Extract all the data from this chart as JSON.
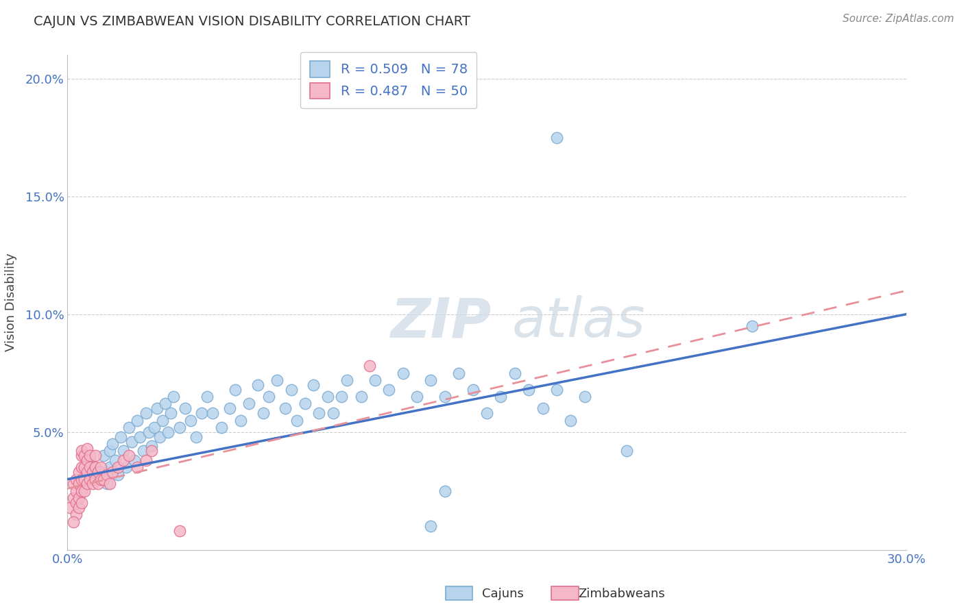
{
  "title": "CAJUN VS ZIMBABWEAN VISION DISABILITY CORRELATION CHART",
  "source": "Source: ZipAtlas.com",
  "ylabel": "Vision Disability",
  "xlim": [
    0.0,
    0.3
  ],
  "ylim": [
    0.0,
    0.21
  ],
  "xticks": [
    0.0,
    0.05,
    0.1,
    0.15,
    0.2,
    0.25,
    0.3
  ],
  "xticklabels": [
    "0.0%",
    "",
    "",
    "",
    "",
    "",
    "30.0%"
  ],
  "yticks": [
    0.0,
    0.05,
    0.1,
    0.15,
    0.2
  ],
  "yticklabels": [
    "",
    "5.0%",
    "10.0%",
    "15.0%",
    "20.0%"
  ],
  "cajun_fill_color": "#b8d4ed",
  "cajun_edge_color": "#7aaad0",
  "zimbabwean_fill_color": "#f5b8c8",
  "zimbabwean_edge_color": "#e07090",
  "cajun_R": 0.509,
  "cajun_N": 78,
  "zimbabwean_R": 0.487,
  "zimbabwean_N": 50,
  "trend_cajun_color": "#4472c4",
  "trend_zimbabwean_color": "#e8909a",
  "grid_color": "#cccccc",
  "title_color": "#333333",
  "axis_tick_color": "#4472c4",
  "watermark_zip": "ZIP",
  "watermark_atlas": "atlas",
  "cajun_points": [
    [
      0.008,
      0.038
    ],
    [
      0.01,
      0.03
    ],
    [
      0.012,
      0.033
    ],
    [
      0.013,
      0.04
    ],
    [
      0.014,
      0.028
    ],
    [
      0.015,
      0.035
    ],
    [
      0.015,
      0.042
    ],
    [
      0.016,
      0.045
    ],
    [
      0.017,
      0.038
    ],
    [
      0.018,
      0.032
    ],
    [
      0.019,
      0.048
    ],
    [
      0.02,
      0.042
    ],
    [
      0.021,
      0.035
    ],
    [
      0.022,
      0.052
    ],
    [
      0.023,
      0.046
    ],
    [
      0.024,
      0.038
    ],
    [
      0.025,
      0.055
    ],
    [
      0.026,
      0.048
    ],
    [
      0.027,
      0.042
    ],
    [
      0.028,
      0.058
    ],
    [
      0.029,
      0.05
    ],
    [
      0.03,
      0.044
    ],
    [
      0.031,
      0.052
    ],
    [
      0.032,
      0.06
    ],
    [
      0.033,
      0.048
    ],
    [
      0.034,
      0.055
    ],
    [
      0.035,
      0.062
    ],
    [
      0.036,
      0.05
    ],
    [
      0.037,
      0.058
    ],
    [
      0.038,
      0.065
    ],
    [
      0.04,
      0.052
    ],
    [
      0.042,
      0.06
    ],
    [
      0.044,
      0.055
    ],
    [
      0.046,
      0.048
    ],
    [
      0.048,
      0.058
    ],
    [
      0.05,
      0.065
    ],
    [
      0.052,
      0.058
    ],
    [
      0.055,
      0.052
    ],
    [
      0.058,
      0.06
    ],
    [
      0.06,
      0.068
    ],
    [
      0.062,
      0.055
    ],
    [
      0.065,
      0.062
    ],
    [
      0.068,
      0.07
    ],
    [
      0.07,
      0.058
    ],
    [
      0.072,
      0.065
    ],
    [
      0.075,
      0.072
    ],
    [
      0.078,
      0.06
    ],
    [
      0.08,
      0.068
    ],
    [
      0.082,
      0.055
    ],
    [
      0.085,
      0.062
    ],
    [
      0.088,
      0.07
    ],
    [
      0.09,
      0.058
    ],
    [
      0.093,
      0.065
    ],
    [
      0.095,
      0.058
    ],
    [
      0.098,
      0.065
    ],
    [
      0.1,
      0.072
    ],
    [
      0.105,
      0.065
    ],
    [
      0.11,
      0.072
    ],
    [
      0.115,
      0.068
    ],
    [
      0.12,
      0.075
    ],
    [
      0.125,
      0.065
    ],
    [
      0.13,
      0.072
    ],
    [
      0.135,
      0.065
    ],
    [
      0.14,
      0.075
    ],
    [
      0.145,
      0.068
    ],
    [
      0.15,
      0.058
    ],
    [
      0.155,
      0.065
    ],
    [
      0.16,
      0.075
    ],
    [
      0.165,
      0.068
    ],
    [
      0.17,
      0.06
    ],
    [
      0.175,
      0.068
    ],
    [
      0.175,
      0.175
    ],
    [
      0.18,
      0.055
    ],
    [
      0.185,
      0.065
    ],
    [
      0.2,
      0.042
    ],
    [
      0.245,
      0.095
    ],
    [
      0.13,
      0.01
    ],
    [
      0.135,
      0.025
    ]
  ],
  "zimbabwean_points": [
    [
      0.001,
      0.018
    ],
    [
      0.002,
      0.022
    ],
    [
      0.002,
      0.028
    ],
    [
      0.003,
      0.015
    ],
    [
      0.003,
      0.02
    ],
    [
      0.003,
      0.025
    ],
    [
      0.003,
      0.03
    ],
    [
      0.004,
      0.018
    ],
    [
      0.004,
      0.022
    ],
    [
      0.004,
      0.028
    ],
    [
      0.004,
      0.033
    ],
    [
      0.005,
      0.02
    ],
    [
      0.005,
      0.025
    ],
    [
      0.005,
      0.03
    ],
    [
      0.005,
      0.035
    ],
    [
      0.005,
      0.04
    ],
    [
      0.005,
      0.042
    ],
    [
      0.006,
      0.025
    ],
    [
      0.006,
      0.03
    ],
    [
      0.006,
      0.035
    ],
    [
      0.006,
      0.04
    ],
    [
      0.007,
      0.028
    ],
    [
      0.007,
      0.033
    ],
    [
      0.007,
      0.038
    ],
    [
      0.007,
      0.043
    ],
    [
      0.008,
      0.03
    ],
    [
      0.008,
      0.035
    ],
    [
      0.008,
      0.04
    ],
    [
      0.009,
      0.028
    ],
    [
      0.009,
      0.033
    ],
    [
      0.01,
      0.03
    ],
    [
      0.01,
      0.035
    ],
    [
      0.01,
      0.04
    ],
    [
      0.011,
      0.028
    ],
    [
      0.011,
      0.033
    ],
    [
      0.012,
      0.03
    ],
    [
      0.012,
      0.035
    ],
    [
      0.013,
      0.03
    ],
    [
      0.014,
      0.032
    ],
    [
      0.015,
      0.028
    ],
    [
      0.016,
      0.033
    ],
    [
      0.018,
      0.035
    ],
    [
      0.02,
      0.038
    ],
    [
      0.022,
      0.04
    ],
    [
      0.025,
      0.035
    ],
    [
      0.028,
      0.038
    ],
    [
      0.03,
      0.042
    ],
    [
      0.108,
      0.078
    ],
    [
      0.04,
      0.008
    ],
    [
      0.002,
      0.012
    ]
  ]
}
